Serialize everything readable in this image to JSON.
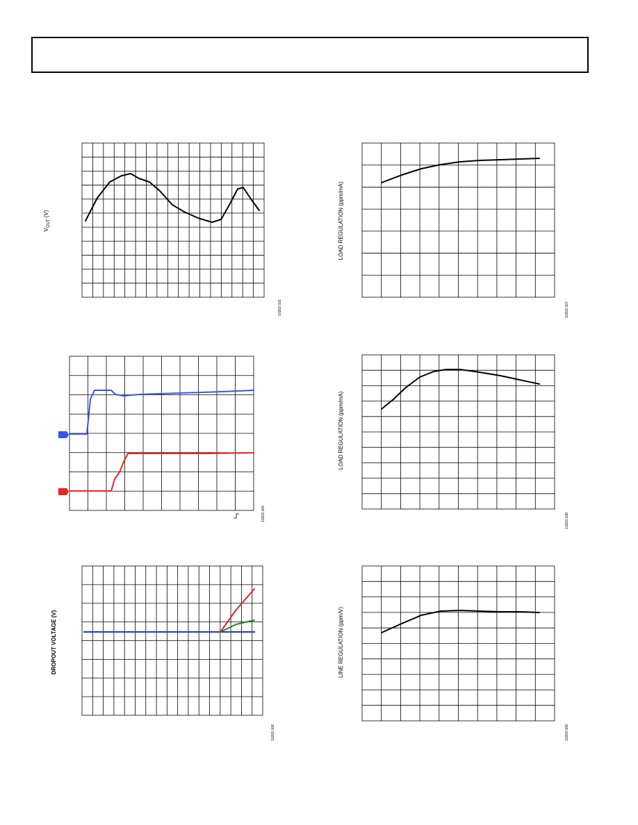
{
  "figures": [
    {
      "y_label": [
        "V",
        "OUT",
        " (V)"
      ],
      "id": "10203-101"
    },
    {
      "y_label": "LOAD REGULATION (ppm/mA)",
      "id": "10203-107"
    },
    {
      "id": "10203-104"
    },
    {
      "y_label": "LOAD REGULATION (ppm/mA)",
      "id": "10203-108"
    },
    {
      "y_label": "DROPOUT VOLTAGE (V)",
      "id": "10203-106"
    },
    {
      "y_label": "LINE REGULATION (ppm/V)",
      "id": "10203-109"
    }
  ]
}
